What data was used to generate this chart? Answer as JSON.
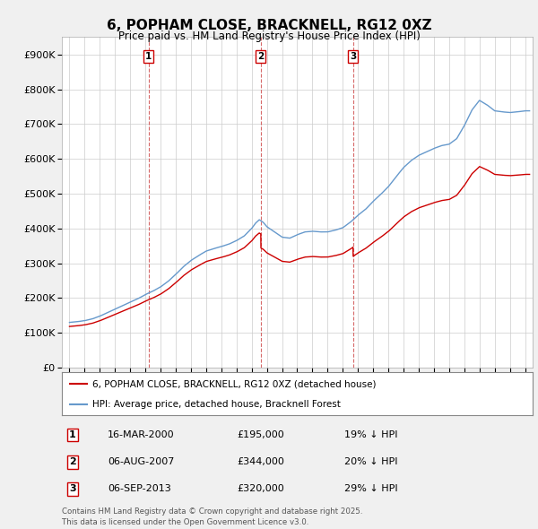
{
  "title": "6, POPHAM CLOSE, BRACKNELL, RG12 0XZ",
  "subtitle": "Price paid vs. HM Land Registry's House Price Index (HPI)",
  "bg_color": "#f0f0f0",
  "plot_bg_color": "#ffffff",
  "red_color": "#cc0000",
  "blue_color": "#6699cc",
  "purchases": [
    {
      "date_num": 2000.21,
      "price": 195000,
      "label": "1"
    },
    {
      "date_num": 2007.6,
      "price": 344000,
      "label": "2"
    },
    {
      "date_num": 2013.68,
      "price": 320000,
      "label": "3"
    }
  ],
  "vline_dates": [
    2000.21,
    2007.6,
    2013.68
  ],
  "legend_entries": [
    "6, POPHAM CLOSE, BRACKNELL, RG12 0XZ (detached house)",
    "HPI: Average price, detached house, Bracknell Forest"
  ],
  "table_rows": [
    {
      "num": "1",
      "date": "16-MAR-2000",
      "price": "£195,000",
      "hpi": "19% ↓ HPI"
    },
    {
      "num": "2",
      "date": "06-AUG-2007",
      "price": "£344,000",
      "hpi": "20% ↓ HPI"
    },
    {
      "num": "3",
      "date": "06-SEP-2013",
      "price": "£320,000",
      "hpi": "29% ↓ HPI"
    }
  ],
  "footer": "Contains HM Land Registry data © Crown copyright and database right 2025.\nThis data is licensed under the Open Government Licence v3.0.",
  "ylim": [
    0,
    950000
  ],
  "xlim": [
    1994.5,
    2025.5
  ],
  "yticks": [
    0,
    100000,
    200000,
    300000,
    400000,
    500000,
    600000,
    700000,
    800000,
    900000
  ],
  "ytick_labels": [
    "£0",
    "£100K",
    "£200K",
    "£300K",
    "£400K",
    "£500K",
    "£600K",
    "£700K",
    "£800K",
    "£900K"
  ],
  "xticks": [
    1995,
    1996,
    1997,
    1998,
    1999,
    2000,
    2001,
    2002,
    2003,
    2004,
    2005,
    2006,
    2007,
    2008,
    2009,
    2010,
    2011,
    2012,
    2013,
    2014,
    2015,
    2016,
    2017,
    2018,
    2019,
    2020,
    2021,
    2022,
    2023,
    2024,
    2025
  ],
  "hpi_years": [
    1995,
    1995.5,
    1996,
    1996.5,
    1997,
    1997.5,
    1998,
    1998.5,
    1999,
    1999.5,
    2000,
    2000.5,
    2001,
    2001.5,
    2002,
    2002.5,
    2003,
    2003.5,
    2004,
    2004.5,
    2005,
    2005.5,
    2006,
    2006.5,
    2007,
    2007.25,
    2007.5,
    2007.75,
    2008,
    2008.5,
    2009,
    2009.5,
    2010,
    2010.5,
    2011,
    2011.5,
    2012,
    2012.5,
    2013,
    2013.5,
    2014,
    2014.5,
    2015,
    2015.5,
    2016,
    2016.5,
    2017,
    2017.5,
    2018,
    2018.5,
    2019,
    2019.5,
    2020,
    2020.5,
    2021,
    2021.5,
    2022,
    2022.5,
    2023,
    2023.5,
    2024,
    2024.5,
    2025
  ],
  "hpi_vals": [
    130000,
    132000,
    135000,
    140000,
    148000,
    158000,
    168000,
    178000,
    188000,
    198000,
    210000,
    220000,
    232000,
    248000,
    268000,
    290000,
    308000,
    322000,
    335000,
    342000,
    348000,
    355000,
    365000,
    378000,
    400000,
    415000,
    425000,
    418000,
    405000,
    390000,
    375000,
    372000,
    382000,
    390000,
    392000,
    390000,
    390000,
    395000,
    402000,
    418000,
    438000,
    455000,
    478000,
    498000,
    520000,
    548000,
    575000,
    595000,
    610000,
    620000,
    630000,
    638000,
    642000,
    658000,
    695000,
    740000,
    768000,
    755000,
    738000,
    735000,
    733000,
    735000,
    738000
  ]
}
